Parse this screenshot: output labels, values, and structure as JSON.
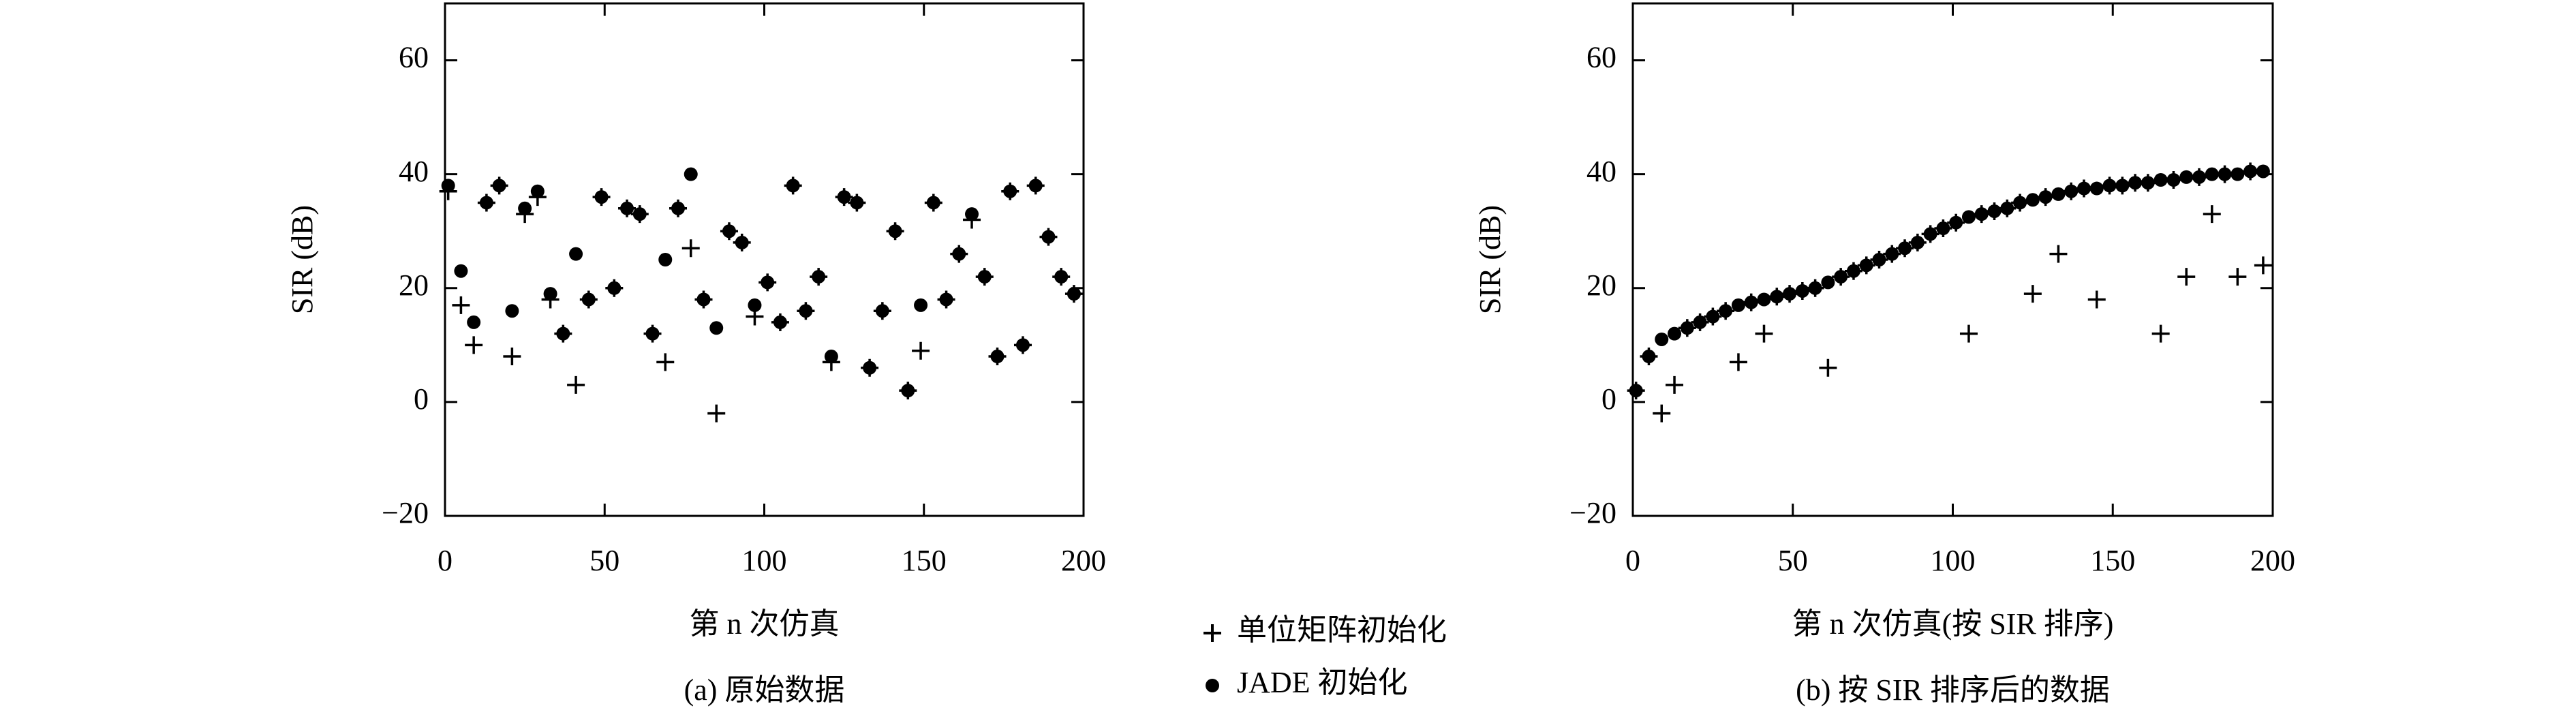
{
  "chart_data": [
    {
      "type": "scatter",
      "ylabel": "SIR (dB)",
      "xlabel": "第 n 次仿真",
      "caption": "(a) 原始数据",
      "xlim": [
        0,
        200
      ],
      "xticks": [
        0,
        50,
        100,
        150,
        200
      ],
      "ylim": [
        -20,
        70
      ],
      "yticks": [
        {
          "value": -20,
          "label": "−20"
        },
        0,
        20,
        40,
        60
      ],
      "x": [
        1,
        5,
        9,
        13,
        17,
        21,
        25,
        29,
        33,
        37,
        41,
        45,
        49,
        53,
        57,
        61,
        65,
        69,
        73,
        77,
        81,
        85,
        89,
        93,
        97,
        101,
        105,
        109,
        113,
        117,
        121,
        125,
        129,
        133,
        137,
        141,
        145,
        149,
        153,
        157,
        161,
        165,
        169,
        173,
        177,
        181,
        185,
        189,
        193,
        197
      ],
      "series": [
        {
          "name": "单位矩阵初始化",
          "marker": "plus",
          "color": "#000000",
          "values": [
            37,
            17,
            10,
            35,
            38,
            8,
            33,
            36,
            18,
            12,
            3,
            18,
            36,
            20,
            34,
            33,
            12,
            7,
            34,
            27,
            18,
            -2,
            30,
            28,
            15,
            21,
            14,
            38,
            16,
            22,
            7,
            36,
            35,
            6,
            16,
            30,
            2,
            9,
            35,
            18,
            26,
            32,
            22,
            8,
            37,
            10,
            38,
            29,
            22,
            19
          ]
        },
        {
          "name": "JADE 初始化",
          "marker": "circle",
          "color": "#000000",
          "values": [
            38,
            23,
            14,
            35,
            38,
            16,
            34,
            37,
            19,
            12,
            26,
            18,
            36,
            20,
            34,
            33,
            12,
            25,
            34,
            40,
            18,
            13,
            30,
            28,
            17,
            21,
            14,
            38,
            16,
            22,
            8,
            36,
            35,
            6,
            16,
            30,
            2,
            17,
            35,
            18,
            26,
            33,
            22,
            8,
            37,
            10,
            38,
            29,
            22,
            19
          ]
        }
      ]
    },
    {
      "type": "scatter",
      "ylabel": "SIR (dB)",
      "xlabel": "第 n 次仿真(按 SIR 排序)",
      "caption": "(b) 按 SIR 排序后的数据",
      "xlim": [
        0,
        200
      ],
      "xticks": [
        0,
        50,
        100,
        150,
        200
      ],
      "ylim": [
        -20,
        70
      ],
      "yticks": [
        {
          "value": -20,
          "label": "−20"
        },
        0,
        20,
        40,
        60
      ],
      "x": [
        1,
        5,
        9,
        13,
        17,
        21,
        25,
        29,
        33,
        37,
        41,
        45,
        49,
        53,
        57,
        61,
        65,
        69,
        73,
        77,
        81,
        85,
        89,
        93,
        97,
        101,
        105,
        109,
        113,
        117,
        121,
        125,
        129,
        133,
        137,
        141,
        145,
        149,
        153,
        157,
        161,
        165,
        169,
        173,
        177,
        181,
        185,
        189,
        193,
        197
      ],
      "series": [
        {
          "marker": "plus",
          "color": "#000000",
          "values": [
            2,
            8,
            -2,
            3,
            13,
            14,
            15,
            16,
            7,
            17.5,
            12,
            18.5,
            19,
            19.5,
            20,
            6,
            22,
            23,
            24,
            25,
            26,
            27,
            28,
            29.5,
            30.5,
            31.5,
            12,
            33,
            33.5,
            34,
            35,
            19,
            36,
            26,
            37,
            37.5,
            18,
            38,
            38,
            38.5,
            38.5,
            12,
            39,
            22,
            39.5,
            33,
            40,
            22,
            40.5,
            24
          ]
        },
        {
          "marker": "circle",
          "color": "#000000",
          "values": [
            2,
            8,
            11,
            12,
            13,
            14,
            15,
            16,
            17,
            17.5,
            18,
            18.5,
            19,
            19.5,
            20,
            21,
            22,
            23,
            24,
            25,
            26,
            27,
            28,
            29.5,
            30.5,
            31.5,
            32.5,
            33,
            33.5,
            34,
            35,
            35.5,
            36,
            36.5,
            37,
            37.5,
            37.5,
            38,
            38,
            38.5,
            38.5,
            39,
            39,
            39.5,
            39.5,
            40,
            40,
            40,
            40.5,
            40.5
          ]
        }
      ]
    }
  ]
}
